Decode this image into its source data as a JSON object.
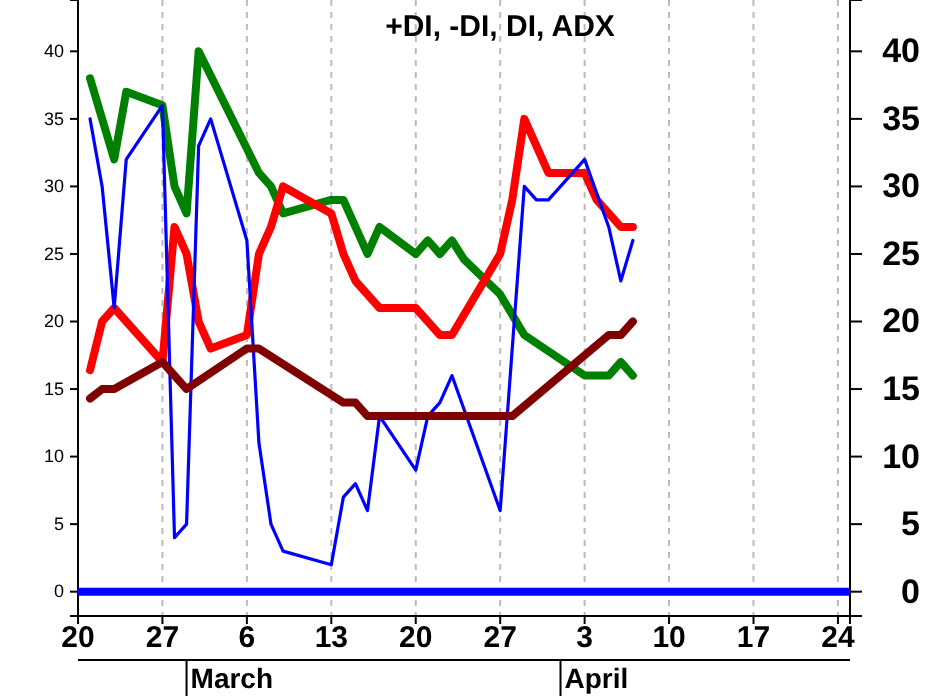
{
  "chart_data": {
    "type": "line",
    "title": "+DI, -DI, DI, ADX",
    "xlim": [
      "--02-20",
      "--04-25"
    ],
    "xticks": [
      {
        "value": "--02-20",
        "label": "20"
      },
      {
        "value": "--02-27",
        "label": "27"
      },
      {
        "value": "--03-06",
        "label": "6"
      },
      {
        "value": "--03-13",
        "label": "13"
      },
      {
        "value": "--03-20",
        "label": "20"
      },
      {
        "value": "--03-27",
        "label": "27"
      },
      {
        "value": "--04-03",
        "label": "3"
      },
      {
        "value": "--04-10",
        "label": "10"
      },
      {
        "value": "--04-17",
        "label": "17"
      },
      {
        "value": "--04-24",
        "label": "24"
      }
    ],
    "ylim": [
      -1.8,
      43.8
    ],
    "yticks": [
      0,
      5,
      10,
      15,
      20,
      25,
      30,
      35,
      40
    ],
    "y2lim": [
      -1.8,
      43.8
    ],
    "y2ticks": [
      0,
      5,
      10,
      15,
      20,
      25,
      30,
      35,
      40
    ],
    "grid": "x",
    "marker": "none",
    "line_style": "solid",
    "ref_lines": [
      {
        "axis": "y",
        "value": 0,
        "label": null,
        "color": "#0000ff"
      }
    ],
    "annotations": [
      "March",
      "April"
    ],
    "series": [
      {
        "color": "#008000",
        "x": [
          "--02-21",
          "--02-23",
          "--02-24",
          "--02-27",
          "--02-28",
          "--03-01",
          "--03-02",
          "--03-07",
          "--03-08",
          "--03-09",
          "--03-13",
          "--03-14",
          "--03-16",
          "--03-17",
          "--03-20",
          "--03-21",
          "--03-22",
          "--03-23",
          "--03-24",
          "--03-27",
          "--03-29",
          "--04-03",
          "--04-05",
          "--04-06",
          "--04-07"
        ],
        "values": [
          38,
          32,
          37,
          36,
          30,
          28,
          40,
          31,
          30,
          28,
          29,
          29,
          25,
          27,
          25,
          26,
          25,
          26,
          24.6,
          22,
          19,
          16,
          16,
          17,
          16
        ]
      },
      {
        "color": "#ff0000",
        "x": [
          "--02-21",
          "--02-22",
          "--02-23",
          "--02-27",
          "--02-28",
          "--03-01",
          "--03-02",
          "--03-03",
          "--03-06",
          "--03-07",
          "--03-08",
          "--03-09",
          "--03-13",
          "--03-14",
          "--03-15",
          "--03-17",
          "--03-20",
          "--03-22",
          "--03-23",
          "--03-24",
          "--03-27",
          "--03-28",
          "--03-29",
          "--03-31",
          "--04-03",
          "--04-04",
          "--04-06",
          "--04-07"
        ],
        "values": [
          16.4,
          20,
          21,
          17,
          27,
          25,
          20,
          18,
          19,
          25,
          27,
          30,
          28,
          25,
          23,
          21,
          21,
          19,
          19,
          20.5,
          25,
          29,
          35,
          31,
          31,
          29,
          27,
          27
        ]
      },
      {
        "color": "#0000ff",
        "x": [
          "--02-21",
          "--02-22",
          "--02-23",
          "--02-24",
          "--02-27",
          "--02-28",
          "--03-01",
          "--03-02",
          "--03-03",
          "--03-06",
          "--03-07",
          "--03-08",
          "--03-09",
          "--03-13",
          "--03-14",
          "--03-15",
          "--03-16",
          "--03-17",
          "--03-20",
          "--03-21",
          "--03-22",
          "--03-23",
          "--03-27",
          "--03-29",
          "--03-30",
          "--03-31",
          "--04-03",
          "--04-05",
          "--04-06",
          "--04-07"
        ],
        "values": [
          35,
          30,
          21,
          32,
          36,
          4,
          5,
          33,
          35,
          26,
          11,
          5,
          3,
          2,
          7,
          8,
          6,
          13,
          9,
          13,
          14,
          16,
          6,
          30,
          29,
          29,
          32,
          27,
          23,
          26
        ]
      },
      {
        "color": "#800000",
        "x": [
          "--02-21",
          "--02-22",
          "--02-23",
          "--02-27",
          "--03-01",
          "--03-06",
          "--03-07",
          "--03-14",
          "--03-15",
          "--03-16",
          "--03-28",
          "--04-05",
          "--04-06",
          "--04-07"
        ],
        "values": [
          14.3,
          15,
          15,
          17,
          15,
          18,
          18,
          14,
          14,
          13,
          13,
          19,
          19,
          20
        ]
      }
    ]
  }
}
